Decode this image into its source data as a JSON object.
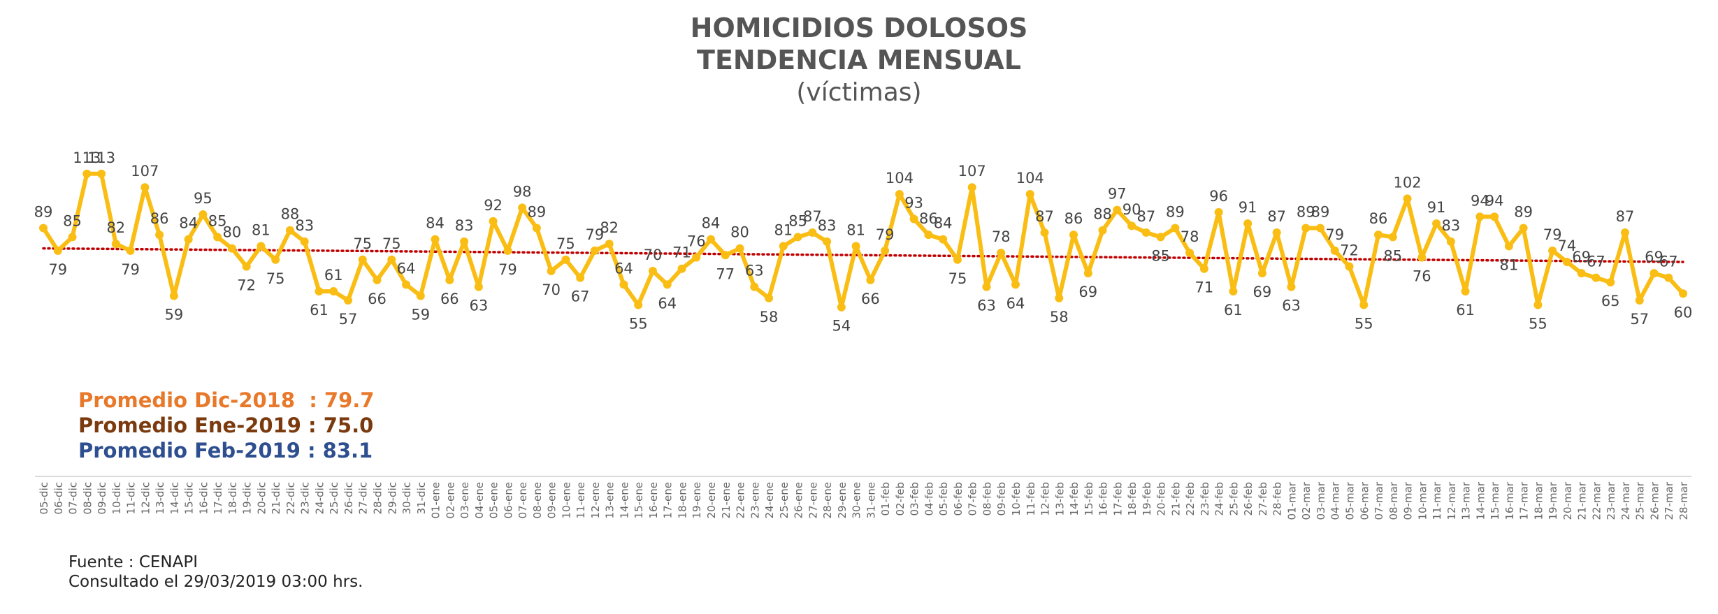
{
  "title": {
    "line1": "HOMICIDIOS DOLOSOS",
    "line2": "TENDENCIA MENSUAL",
    "line3": "(víctimas)"
  },
  "averages": [
    {
      "label": "Promedio Dic-2018  : 79.7",
      "color": "#e8782a"
    },
    {
      "label": "Promedio Ene-2019 : 75.0",
      "color": "#7a3a0e"
    },
    {
      "label": "Promedio Feb-2019 : 83.1",
      "color": "#2e4f8f"
    }
  ],
  "source": {
    "line1": "Fuente : CENAPI",
    "line2": "Consultado el 29/03/2019  03:00 hrs."
  },
  "colors": {
    "series": "#f9bd14",
    "trend": "#c00000",
    "labels": "#444444"
  },
  "chart_data": {
    "type": "line",
    "xlabel": "",
    "ylabel": "",
    "ylim": [
      40,
      125
    ],
    "grid": false,
    "trendline": {
      "style": "dotted",
      "from": 80,
      "to": 74
    },
    "x": [
      "05-dic",
      "06-dic",
      "07-dic",
      "08-dic",
      "09-dic",
      "10-dic",
      "11-dic",
      "12-dic",
      "13-dic",
      "14-dic",
      "15-dic",
      "16-dic",
      "17-dic",
      "18-dic",
      "19-dic",
      "20-dic",
      "21-dic",
      "22-dic",
      "23-dic",
      "24-dic",
      "25-dic",
      "26-dic",
      "27-dic",
      "28-dic",
      "29-dic",
      "30-dic",
      "31-dic",
      "01-ene",
      "02-ene",
      "03-ene",
      "04-ene",
      "05-ene",
      "06-ene",
      "07-ene",
      "08-ene",
      "09-ene",
      "10-ene",
      "11-ene",
      "12-ene",
      "13-ene",
      "14-ene",
      "15-ene",
      "16-ene",
      "17-ene",
      "18-ene",
      "19-ene",
      "20-ene",
      "21-ene",
      "22-ene",
      "23-ene",
      "24-ene",
      "25-ene",
      "26-ene",
      "27-ene",
      "28-ene",
      "29-ene",
      "30-ene",
      "31-ene",
      "01-feb",
      "02-feb",
      "03-feb",
      "04-feb",
      "05-feb",
      "06-feb",
      "07-feb",
      "08-feb",
      "09-feb",
      "10-feb",
      "11-feb",
      "12-feb",
      "13-feb",
      "14-feb",
      "15-feb",
      "16-feb",
      "17-feb",
      "18-feb",
      "19-feb",
      "20-feb",
      "21-feb",
      "22-feb",
      "23-feb",
      "24-feb",
      "25-feb",
      "26-feb",
      "27-feb",
      "28-feb",
      "01-mar",
      "02-mar",
      "03-mar",
      "04-mar",
      "05-mar",
      "06-mar",
      "07-mar",
      "08-mar",
      "09-mar",
      "10-mar",
      "11-mar",
      "12-mar",
      "13-mar",
      "14-mar",
      "15-mar",
      "16-mar",
      "17-mar",
      "18-mar",
      "19-mar",
      "20-mar",
      "21-mar",
      "22-mar",
      "23-mar",
      "24-mar",
      "25-mar",
      "26-mar",
      "27-mar",
      "28-mar"
    ],
    "series": [
      {
        "values": [
          89,
          79,
          85,
          113,
          113,
          82,
          79,
          107,
          86,
          59,
          84,
          95,
          85,
          80,
          72,
          81,
          75,
          88,
          83,
          61,
          61,
          57,
          75,
          66,
          75,
          64,
          59,
          84,
          66,
          83,
          63,
          92,
          79,
          98,
          89,
          70,
          75,
          67,
          79,
          82,
          64,
          55,
          70,
          64,
          71,
          76,
          84,
          77,
          80,
          63,
          58,
          81,
          85,
          87,
          83,
          54,
          81,
          66,
          79,
          104,
          93,
          86,
          84,
          75,
          107,
          63,
          78,
          64,
          104,
          87,
          58,
          86,
          69,
          88,
          97,
          90,
          87,
          85,
          89,
          78,
          71,
          96,
          61,
          91,
          69,
          87,
          63,
          89,
          89,
          79,
          72,
          55,
          86,
          85,
          102,
          76,
          91,
          83,
          61,
          94,
          94,
          81,
          89,
          55,
          79,
          74,
          69,
          67,
          65,
          87,
          57,
          69,
          67,
          60
        ]
      }
    ]
  }
}
